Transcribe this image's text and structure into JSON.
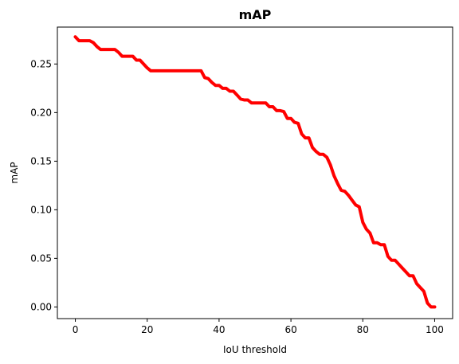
{
  "chart_data": {
    "type": "line",
    "title": "mAP",
    "xlabel": "IoU threshold",
    "ylabel": "mAP",
    "xlim": [
      -5,
      105
    ],
    "ylim": [
      -0.012,
      0.288
    ],
    "xticks": [
      0,
      20,
      40,
      60,
      80,
      100
    ],
    "xtick_labels": [
      "0",
      "20",
      "40",
      "60",
      "80",
      "100"
    ],
    "yticks": [
      0.0,
      0.05,
      0.1,
      0.15,
      0.2,
      0.25
    ],
    "ytick_labels": [
      "0.00",
      "0.05",
      "0.10",
      "0.15",
      "0.20",
      "0.25"
    ],
    "grid": false,
    "line_color": "#ff0000",
    "series": [
      {
        "x": [
          0,
          1,
          2,
          3,
          4,
          5,
          6,
          7,
          8,
          9,
          10,
          11,
          12,
          13,
          14,
          15,
          16,
          17,
          18,
          19,
          20,
          21,
          22,
          23,
          24,
          25,
          26,
          27,
          28,
          29,
          30,
          31,
          32,
          33,
          34,
          35,
          36,
          37,
          38,
          39,
          40,
          41,
          42,
          43,
          44,
          45,
          46,
          47,
          48,
          49,
          50,
          51,
          52,
          53,
          54,
          55,
          56,
          57,
          58,
          59,
          60,
          61,
          62,
          63,
          64,
          65,
          66,
          67,
          68,
          69,
          70,
          71,
          72,
          73,
          74,
          75,
          76,
          77,
          78,
          79,
          80,
          81,
          82,
          83,
          84,
          85,
          86,
          87,
          88,
          89,
          90,
          91,
          92,
          93,
          94,
          95,
          96,
          97,
          98,
          99,
          100
        ],
        "y": [
          0.278,
          0.274,
          0.274,
          0.274,
          0.274,
          0.272,
          0.268,
          0.265,
          0.265,
          0.265,
          0.265,
          0.265,
          0.262,
          0.258,
          0.258,
          0.258,
          0.258,
          0.254,
          0.254,
          0.25,
          0.246,
          0.243,
          0.243,
          0.243,
          0.243,
          0.243,
          0.243,
          0.243,
          0.243,
          0.243,
          0.243,
          0.243,
          0.243,
          0.243,
          0.243,
          0.243,
          0.236,
          0.235,
          0.231,
          0.228,
          0.228,
          0.225,
          0.225,
          0.222,
          0.222,
          0.218,
          0.214,
          0.213,
          0.213,
          0.21,
          0.21,
          0.21,
          0.21,
          0.21,
          0.206,
          0.206,
          0.202,
          0.202,
          0.201,
          0.194,
          0.194,
          0.19,
          0.189,
          0.178,
          0.174,
          0.174,
          0.164,
          0.16,
          0.157,
          0.157,
          0.154,
          0.146,
          0.135,
          0.127,
          0.12,
          0.119,
          0.115,
          0.11,
          0.105,
          0.103,
          0.087,
          0.08,
          0.076,
          0.066,
          0.066,
          0.064,
          0.064,
          0.052,
          0.048,
          0.048,
          0.044,
          0.04,
          0.036,
          0.032,
          0.032,
          0.024,
          0.02,
          0.016,
          0.004,
          0.0,
          0.0
        ]
      }
    ]
  }
}
